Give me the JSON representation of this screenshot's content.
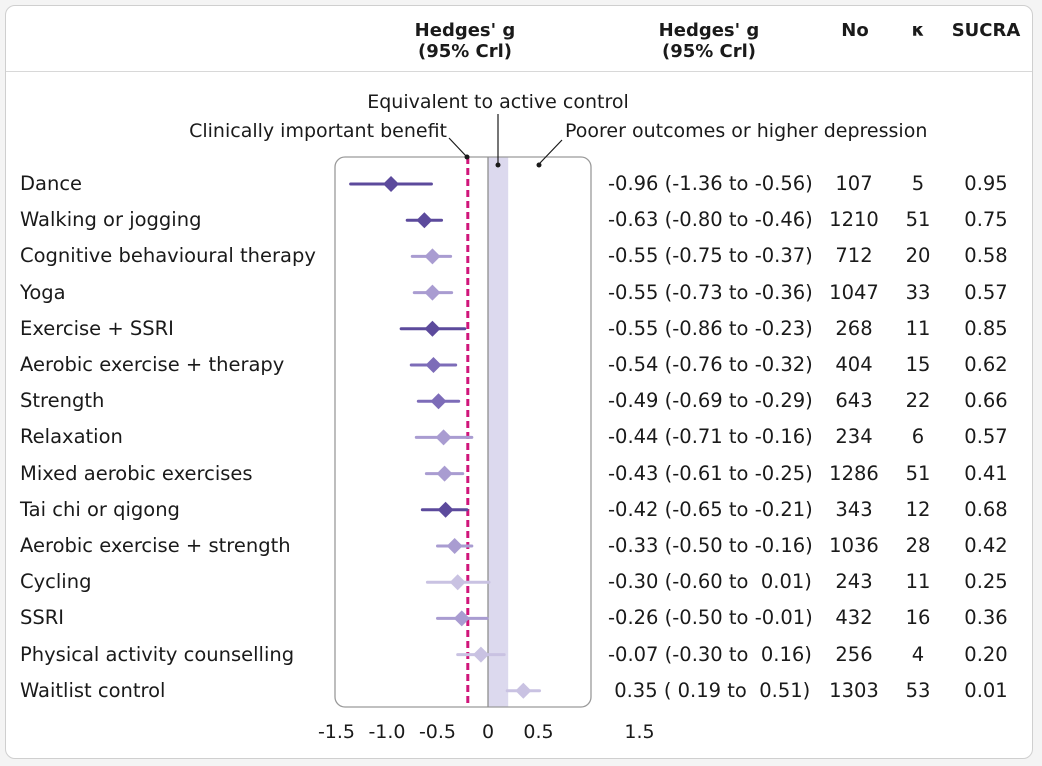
{
  "header": {
    "plot_col_line1": "Hedges' g",
    "plot_col_line2": "(95% Crl)",
    "est_col_line1": "Hedges' g",
    "est_col_line2": "(95% Crl)",
    "n_col": "No",
    "k_col": "κ",
    "sucra_col": "SUCRA"
  },
  "chart_data": {
    "type": "forest",
    "xlim": [
      -1.5,
      1.5
    ],
    "xticks": [
      -1.5,
      -1.0,
      -0.5,
      0,
      0.5,
      1.5
    ],
    "xtick_labels": [
      "-1.5",
      "-1.0",
      "-0.5",
      "0",
      "0.5",
      "1.5"
    ],
    "reference_lines": {
      "clinically_important": -0.2,
      "null": 0,
      "equivalence_band": [
        0,
        0.2
      ]
    },
    "annotations": {
      "equivalent": "Equivalent to active control",
      "clinical": "Clinically important benefit",
      "poorer": "Poorer outcomes or higher depression"
    },
    "colors": {
      "dark": "#5c4a9c",
      "mid": "#7d6cb8",
      "light": "#a99cd1",
      "pale": "#c9c2e2",
      "band": "#dcd9ee",
      "clinical_line": "#d0157a"
    },
    "rows": [
      {
        "name": "Dance",
        "est": -0.96,
        "lo": -1.36,
        "hi": -0.56,
        "est_text": "-0.96 (-1.36 to -0.56)",
        "n": "107",
        "k": "5",
        "sucra": "0.95",
        "shade": "dark"
      },
      {
        "name": "Walking or jogging",
        "est": -0.63,
        "lo": -0.8,
        "hi": -0.46,
        "est_text": "-0.63 (-0.80 to -0.46)",
        "n": "1210",
        "k": "51",
        "sucra": "0.75",
        "shade": "dark"
      },
      {
        "name": "Cognitive behavioural therapy",
        "est": -0.55,
        "lo": -0.75,
        "hi": -0.37,
        "est_text": "-0.55 (-0.75 to -0.37)",
        "n": "712",
        "k": "20",
        "sucra": "0.58",
        "shade": "light"
      },
      {
        "name": "Yoga",
        "est": -0.55,
        "lo": -0.73,
        "hi": -0.36,
        "est_text": "-0.55 (-0.73 to -0.36)",
        "n": "1047",
        "k": "33",
        "sucra": "0.57",
        "shade": "light"
      },
      {
        "name": "Exercise + SSRI",
        "est": -0.55,
        "lo": -0.86,
        "hi": -0.23,
        "est_text": "-0.55 (-0.86 to -0.23)",
        "n": "268",
        "k": "11",
        "sucra": "0.85",
        "shade": "dark"
      },
      {
        "name": "Aerobic exercise + therapy",
        "est": -0.54,
        "lo": -0.76,
        "hi": -0.32,
        "est_text": "-0.54 (-0.76 to -0.32)",
        "n": "404",
        "k": "15",
        "sucra": "0.62",
        "shade": "mid"
      },
      {
        "name": "Strength",
        "est": -0.49,
        "lo": -0.69,
        "hi": -0.29,
        "est_text": "-0.49 (-0.69 to -0.29)",
        "n": "643",
        "k": "22",
        "sucra": "0.66",
        "shade": "mid"
      },
      {
        "name": "Relaxation",
        "est": -0.44,
        "lo": -0.71,
        "hi": -0.16,
        "est_text": "-0.44 (-0.71 to -0.16)",
        "n": "234",
        "k": "6",
        "sucra": "0.57",
        "shade": "light"
      },
      {
        "name": "Mixed aerobic exercises",
        "est": -0.43,
        "lo": -0.61,
        "hi": -0.25,
        "est_text": "-0.43 (-0.61 to -0.25)",
        "n": "1286",
        "k": "51",
        "sucra": "0.41",
        "shade": "light"
      },
      {
        "name": "Tai chi or qigong",
        "est": -0.42,
        "lo": -0.65,
        "hi": -0.21,
        "est_text": "-0.42 (-0.65 to -0.21)",
        "n": "343",
        "k": "12",
        "sucra": "0.68",
        "shade": "dark"
      },
      {
        "name": "Aerobic exercise + strength",
        "est": -0.33,
        "lo": -0.5,
        "hi": -0.16,
        "est_text": "-0.33 (-0.50 to -0.16)",
        "n": "1036",
        "k": "28",
        "sucra": "0.42",
        "shade": "light"
      },
      {
        "name": "Cycling",
        "est": -0.3,
        "lo": -0.6,
        "hi": 0.01,
        "est_text": "-0.30 (-0.60 to  0.01)",
        "n": "243",
        "k": "11",
        "sucra": "0.25",
        "shade": "pale"
      },
      {
        "name": "SSRI",
        "est": -0.26,
        "lo": -0.5,
        "hi": -0.01,
        "est_text": "-0.26 (-0.50 to -0.01)",
        "n": "432",
        "k": "16",
        "sucra": "0.36",
        "shade": "light"
      },
      {
        "name": "Physical activity counselling",
        "est": -0.07,
        "lo": -0.3,
        "hi": 0.16,
        "est_text": "-0.07 (-0.30 to  0.16)",
        "n": "256",
        "k": "4",
        "sucra": "0.20",
        "shade": "pale"
      },
      {
        "name": "Waitlist control",
        "est": 0.35,
        "lo": 0.19,
        "hi": 0.51,
        "est_text": " 0.35 ( 0.19 to  0.51)",
        "n": "1303",
        "k": "53",
        "sucra": "0.01",
        "shade": "pale"
      }
    ]
  }
}
